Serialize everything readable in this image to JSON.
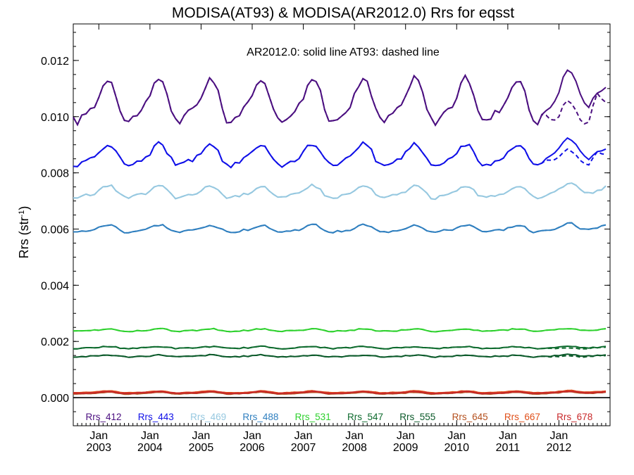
{
  "chart_data": {
    "type": "line",
    "title": "MODISA(AT93) & MODISA(AR2012.0)  Rrs for eqsst",
    "ylabel": "Rrs (str",
    "ylabel_sup": "-1",
    "ylabel_close": ")",
    "annotation": "AR2012.0: solid line   AT93: dashed line",
    "ylim": [
      -0.001,
      0.0133
    ],
    "yticks": [
      "0.000",
      "0.002",
      "0.004",
      "0.006",
      "0.008",
      "0.010",
      "0.012"
    ],
    "ytick_values": [
      0,
      0.002,
      0.004,
      0.006,
      0.008,
      0.01,
      0.012
    ],
    "xlim": [
      2002.5,
      2013.0
    ],
    "xticks": [
      {
        "month": "Jan",
        "year": "2003"
      },
      {
        "month": "Jan",
        "year": "2004"
      },
      {
        "month": "Jan",
        "year": "2005"
      },
      {
        "month": "Jan",
        "year": "2006"
      },
      {
        "month": "Jan",
        "year": "2007"
      },
      {
        "month": "Jan",
        "year": "2008"
      },
      {
        "month": "Jan",
        "year": "2009"
      },
      {
        "month": "Jan",
        "year": "2010"
      },
      {
        "month": "Jan",
        "year": "2011"
      },
      {
        "month": "Jan",
        "year": "2012"
      }
    ],
    "xtick_values": [
      2003,
      2004,
      2005,
      2006,
      2007,
      2008,
      2009,
      2010,
      2011,
      2012
    ],
    "series": [
      {
        "name": "Rrs_412",
        "color": "#4b0f80",
        "mean": 0.0105,
        "amp": 0.0007,
        "noise": 0.00012,
        "div": 0.0011,
        "divFade": 1e-05
      },
      {
        "name": "Rrs_443",
        "color": "#1010e8",
        "mean": 0.0086,
        "amp": 0.00035,
        "noise": 8e-05,
        "div": 0.0004,
        "divFade": 5e-06
      },
      {
        "name": "Rrs_469",
        "color": "#96c8e0",
        "mean": 0.0073,
        "amp": 0.0002,
        "noise": 5e-05,
        "div": 0.0,
        "divFade": 0.0
      },
      {
        "name": "Rrs_488",
        "color": "#2f7fbf",
        "mean": 0.006,
        "amp": 0.00012,
        "noise": 4e-05,
        "div": 0.0,
        "divFade": 0.0
      },
      {
        "name": "Rrs_531",
        "color": "#2ed12e",
        "mean": 0.0024,
        "amp": 4e-05,
        "noise": 2e-05,
        "div": 0.0,
        "divFade": 0.0
      },
      {
        "name": "Rrs_547",
        "color": "#0e6b2e",
        "mean": 0.00178,
        "amp": 3e-05,
        "noise": 2e-05,
        "div": 6e-05,
        "divFade": 0.0
      },
      {
        "name": "Rrs_555",
        "color": "#0b5a2a",
        "mean": 0.00148,
        "amp": 3e-05,
        "noise": 2e-05,
        "div": 5e-05,
        "divFade": 0.0
      },
      {
        "name": "Rrs_645",
        "color": "#b4501e",
        "mean": 0.00016,
        "amp": 3e-05,
        "noise": 1e-05,
        "div": 0.0,
        "divFade": 0.0
      },
      {
        "name": "Rrs_667",
        "color": "#e0501a",
        "mean": 0.0002,
        "amp": 3e-05,
        "noise": 1e-05,
        "div": 0.0,
        "divFade": 0.0
      },
      {
        "name": "Rrs_678",
        "color": "#c8282a",
        "mean": 0.00018,
        "amp": 3e-05,
        "noise": 1e-05,
        "div": 0.0,
        "divFade": 0.0
      }
    ]
  }
}
